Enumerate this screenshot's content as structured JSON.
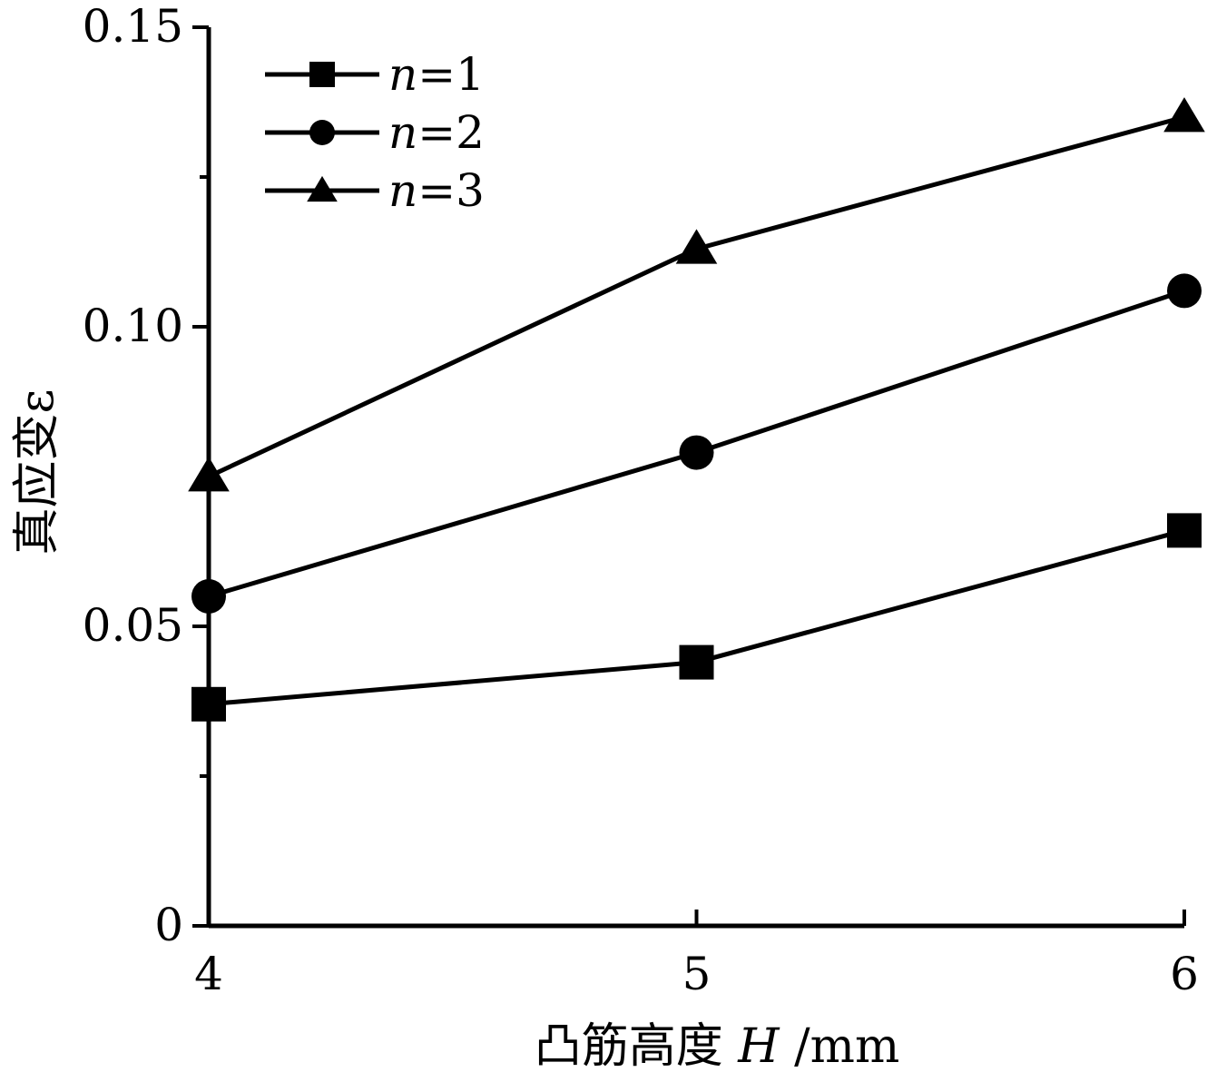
{
  "chart_data": {
    "type": "line",
    "x": [
      4,
      5,
      6
    ],
    "x_tick_labels": [
      "4",
      "5",
      "6"
    ],
    "y_ticks": [
      0,
      0.05,
      0.1,
      0.15
    ],
    "y_tick_labels": [
      "0",
      "0.05",
      "0.10",
      "0.15"
    ],
    "xlim": [
      4,
      6
    ],
    "ylim": [
      0,
      0.15
    ],
    "xlabel": {
      "prefix": "凸筋高度",
      "var": "H",
      "unit": "/mm"
    },
    "ylabel": "真应变ε",
    "legend": {
      "position": "top-left",
      "var": "n"
    },
    "series": [
      {
        "name": "n=1",
        "label_var": "n",
        "label_value": "=1",
        "marker": "square",
        "values": [
          0.037,
          0.044,
          0.066
        ]
      },
      {
        "name": "n=2",
        "label_var": "n",
        "label_value": "=2",
        "marker": "circle",
        "values": [
          0.055,
          0.079,
          0.106
        ]
      },
      {
        "name": "n=3",
        "label_var": "n",
        "label_value": "=3",
        "marker": "triangle",
        "values": [
          0.075,
          0.113,
          0.135
        ]
      }
    ],
    "colors": {
      "line": "#000000",
      "marker": "#000000",
      "background": "#ffffff"
    },
    "grid": false
  }
}
